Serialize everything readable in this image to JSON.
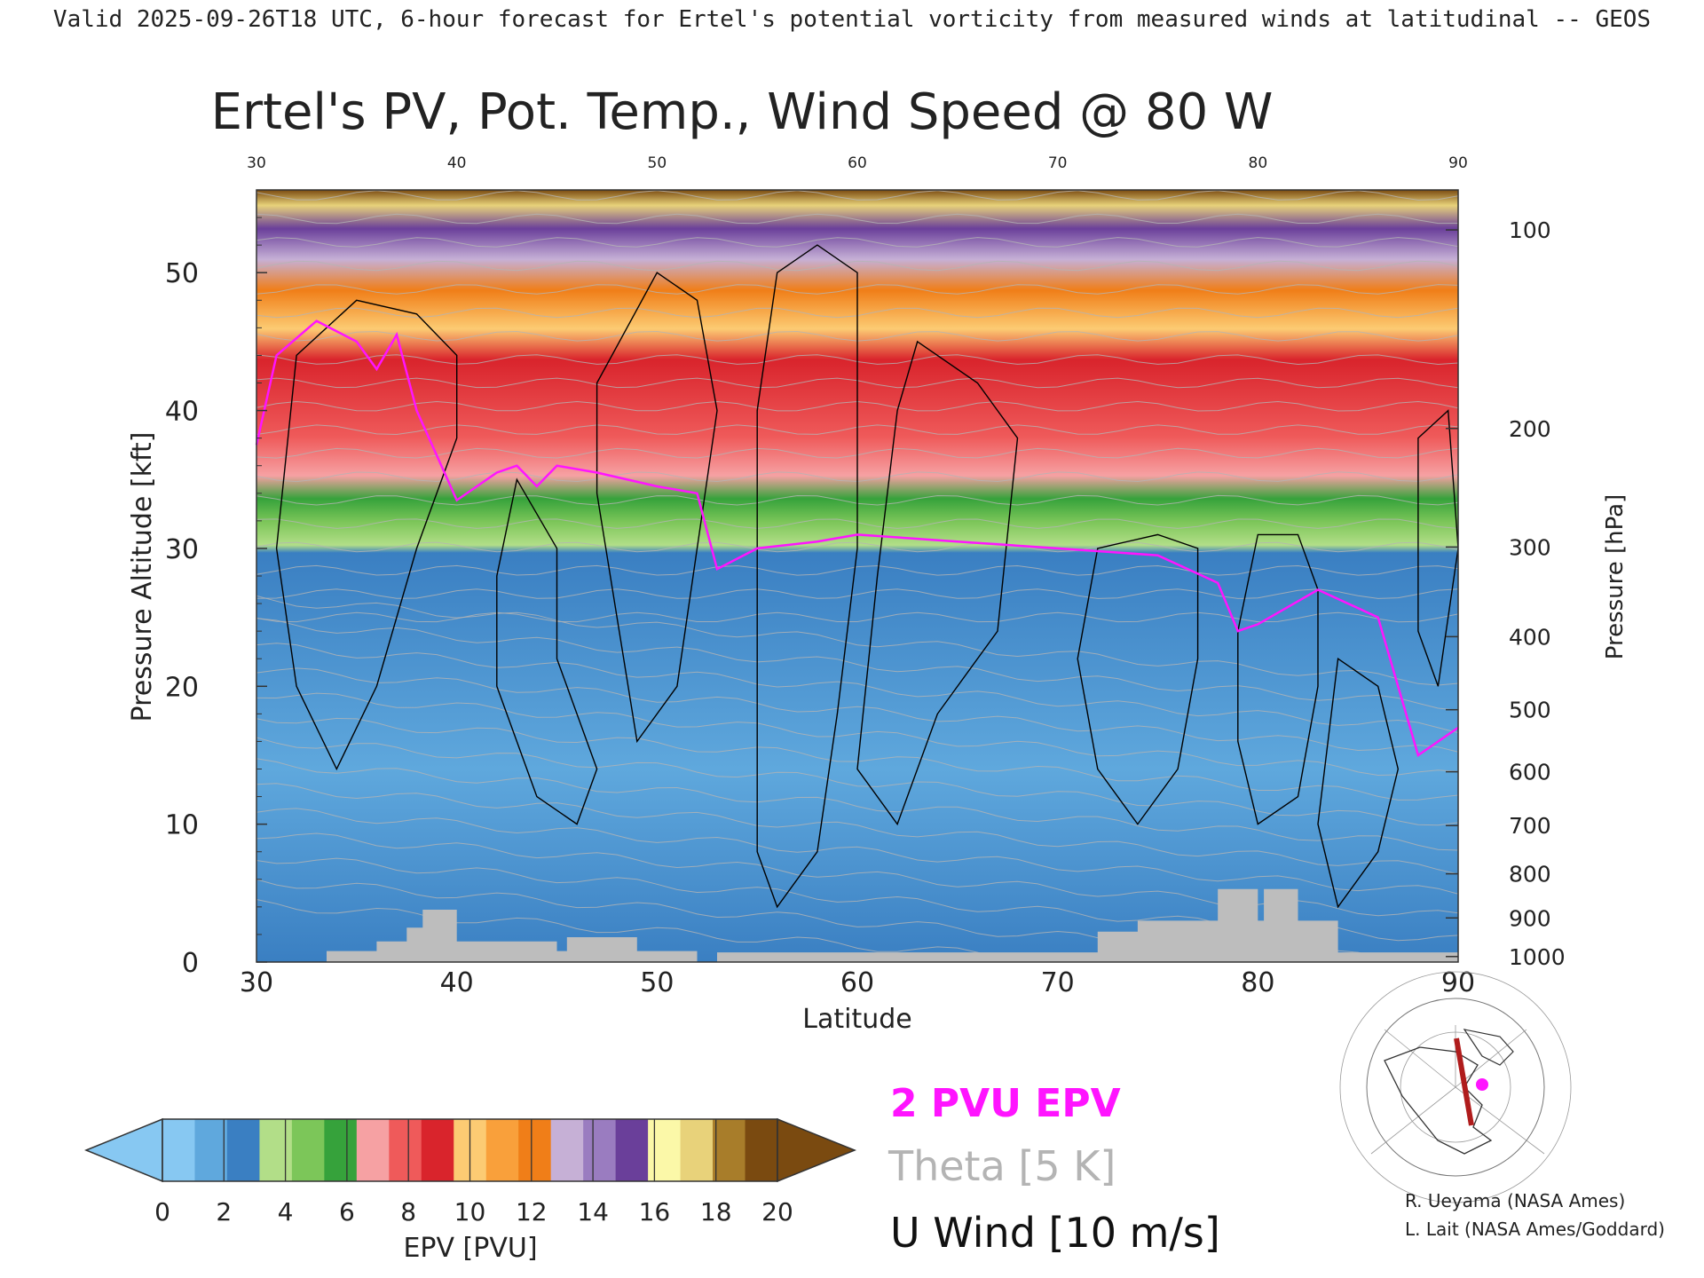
{
  "header": {
    "valid_line": "Valid 2025-09-26T18 UTC, 6-hour forecast for Ertel's potential vorticity from measured winds at latitudinal -- GEOS",
    "plot_title": "Ertel's PV, Pot. Temp., Wind Speed @ 80 W"
  },
  "chart_data": {
    "type": "heatmap",
    "title": "Ertel's PV, Pot. Temp., Wind Speed @ 80 W",
    "xlabel": "Latitude",
    "ylabel": "Pressure Altitude [kft]",
    "y2label": "Pressure [hPa]",
    "xlim": [
      30,
      90
    ],
    "ylim": [
      0,
      56
    ],
    "x_ticks": [
      30,
      40,
      50,
      60,
      70,
      80,
      90
    ],
    "y_ticks": [
      0,
      10,
      20,
      30,
      40,
      50
    ],
    "pressure_ticks": [
      {
        "label": "100",
        "kft": 53.1
      },
      {
        "label": "200",
        "kft": 38.7
      },
      {
        "label": "300",
        "kft": 30.1
      },
      {
        "label": "400",
        "kft": 23.6
      },
      {
        "label": "500",
        "kft": 18.3
      },
      {
        "label": "600",
        "kft": 13.8
      },
      {
        "label": "700",
        "kft": 9.9
      },
      {
        "label": "800",
        "kft": 6.4
      },
      {
        "label": "900",
        "kft": 3.2
      },
      {
        "label": "1000",
        "kft": 0.4
      }
    ],
    "tropopause_2pvu_kft": [
      [
        30,
        37.5
      ],
      [
        31,
        44
      ],
      [
        33,
        46.5
      ],
      [
        35,
        45
      ],
      [
        36,
        43
      ],
      [
        37,
        45.5
      ],
      [
        38,
        40
      ],
      [
        40,
        33.5
      ],
      [
        42,
        35.5
      ],
      [
        43,
        36
      ],
      [
        44,
        34.5
      ],
      [
        45,
        36
      ],
      [
        47,
        35.5
      ],
      [
        50,
        34.5
      ],
      [
        52,
        34
      ],
      [
        53,
        28.5
      ],
      [
        55,
        30
      ],
      [
        58,
        30.5
      ],
      [
        60,
        31
      ],
      [
        65,
        30.5
      ],
      [
        70,
        30
      ],
      [
        75,
        29.5
      ],
      [
        78,
        27.5
      ],
      [
        79,
        24
      ],
      [
        80,
        24.5
      ],
      [
        83,
        27
      ],
      [
        86,
        25
      ],
      [
        88,
        15
      ],
      [
        90,
        17
      ]
    ],
    "terrain_kft": [
      [
        30,
        0
      ],
      [
        33.5,
        0
      ],
      [
        33.5,
        0.8
      ],
      [
        36,
        0.8
      ],
      [
        36,
        1.5
      ],
      [
        37.5,
        1.5
      ],
      [
        37.5,
        2.5
      ],
      [
        38.3,
        2.5
      ],
      [
        38.3,
        3.8
      ],
      [
        40,
        3.8
      ],
      [
        40,
        1.5
      ],
      [
        45,
        1.5
      ],
      [
        45,
        0.8
      ],
      [
        45.5,
        0.8
      ],
      [
        45.5,
        1.8
      ],
      [
        49,
        1.8
      ],
      [
        49,
        0.8
      ],
      [
        52,
        0.8
      ],
      [
        52,
        0
      ],
      [
        53,
        0
      ],
      [
        53,
        0.7
      ],
      [
        72,
        0.7
      ],
      [
        72,
        2.2
      ],
      [
        74,
        2.2
      ],
      [
        74,
        3
      ],
      [
        78,
        3
      ],
      [
        78,
        5.3
      ],
      [
        80,
        5.3
      ],
      [
        80,
        3
      ],
      [
        80.3,
        3
      ],
      [
        80.3,
        5.3
      ],
      [
        82,
        5.3
      ],
      [
        82,
        3
      ],
      [
        84,
        3
      ],
      [
        84,
        0.7
      ],
      [
        90,
        0.7
      ],
      [
        90,
        0
      ]
    ],
    "u_wind_contours_ms": [
      0,
      10,
      20,
      30
    ],
    "theta_interval_K": 5,
    "colorbar": {
      "label": "EPV [PVU]",
      "ticks": [
        "0",
        "2",
        "4",
        "6",
        "8",
        "10",
        "12",
        "14",
        "16",
        "18",
        "20"
      ],
      "colors": [
        "#87c8f2",
        "#5fa8dd",
        "#3a7fc2",
        "#b2de88",
        "#7cc659",
        "#36a23b",
        "#f6a1a3",
        "#ef5a5a",
        "#d9242c",
        "#fccb73",
        "#f9a03b",
        "#f07e18",
        "#c6b0d6",
        "#9a7cc0",
        "#6a3f9a",
        "#fbf8a8",
        "#e8d27a",
        "#a87d2a",
        "#7a4a10"
      ],
      "under_color": "#87c8f2",
      "over_color": "#7a4a10"
    }
  },
  "legend": {
    "pvu_label": "2 PVU EPV",
    "theta_label": "Theta [5 K]",
    "wind_label": "U Wind [10 m/s]",
    "pvu_color": "#ff14ff",
    "theta_color": "#b4b4b4",
    "wind_color": "#000000"
  },
  "credits": {
    "line1": "R. Ueyama (NASA Ames)",
    "line2": "L. Lait (NASA Ames/Goddard)"
  },
  "colors": {
    "terrain": "#bdbdbd",
    "map_track": "#b01c1c",
    "map_marker": "#ff14ff"
  }
}
